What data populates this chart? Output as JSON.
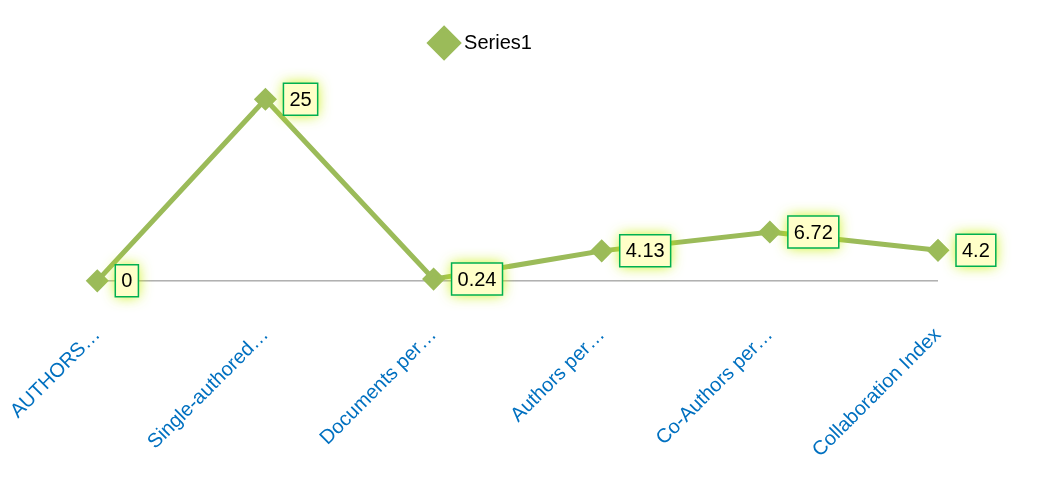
{
  "chart_data": {
    "type": "line",
    "categories": [
      "AUTHORS…",
      "Single-authored…",
      "Documents per…",
      "Authors per…",
      "Co-Authors per…",
      "Collaboration Index"
    ],
    "series": [
      {
        "name": "Series1",
        "color": "#9bbb59",
        "values": [
          0,
          25,
          0.24,
          4.13,
          6.72,
          4.2
        ]
      }
    ],
    "data_labels": true,
    "legend": "top",
    "marker": "diamond",
    "grid": false
  }
}
